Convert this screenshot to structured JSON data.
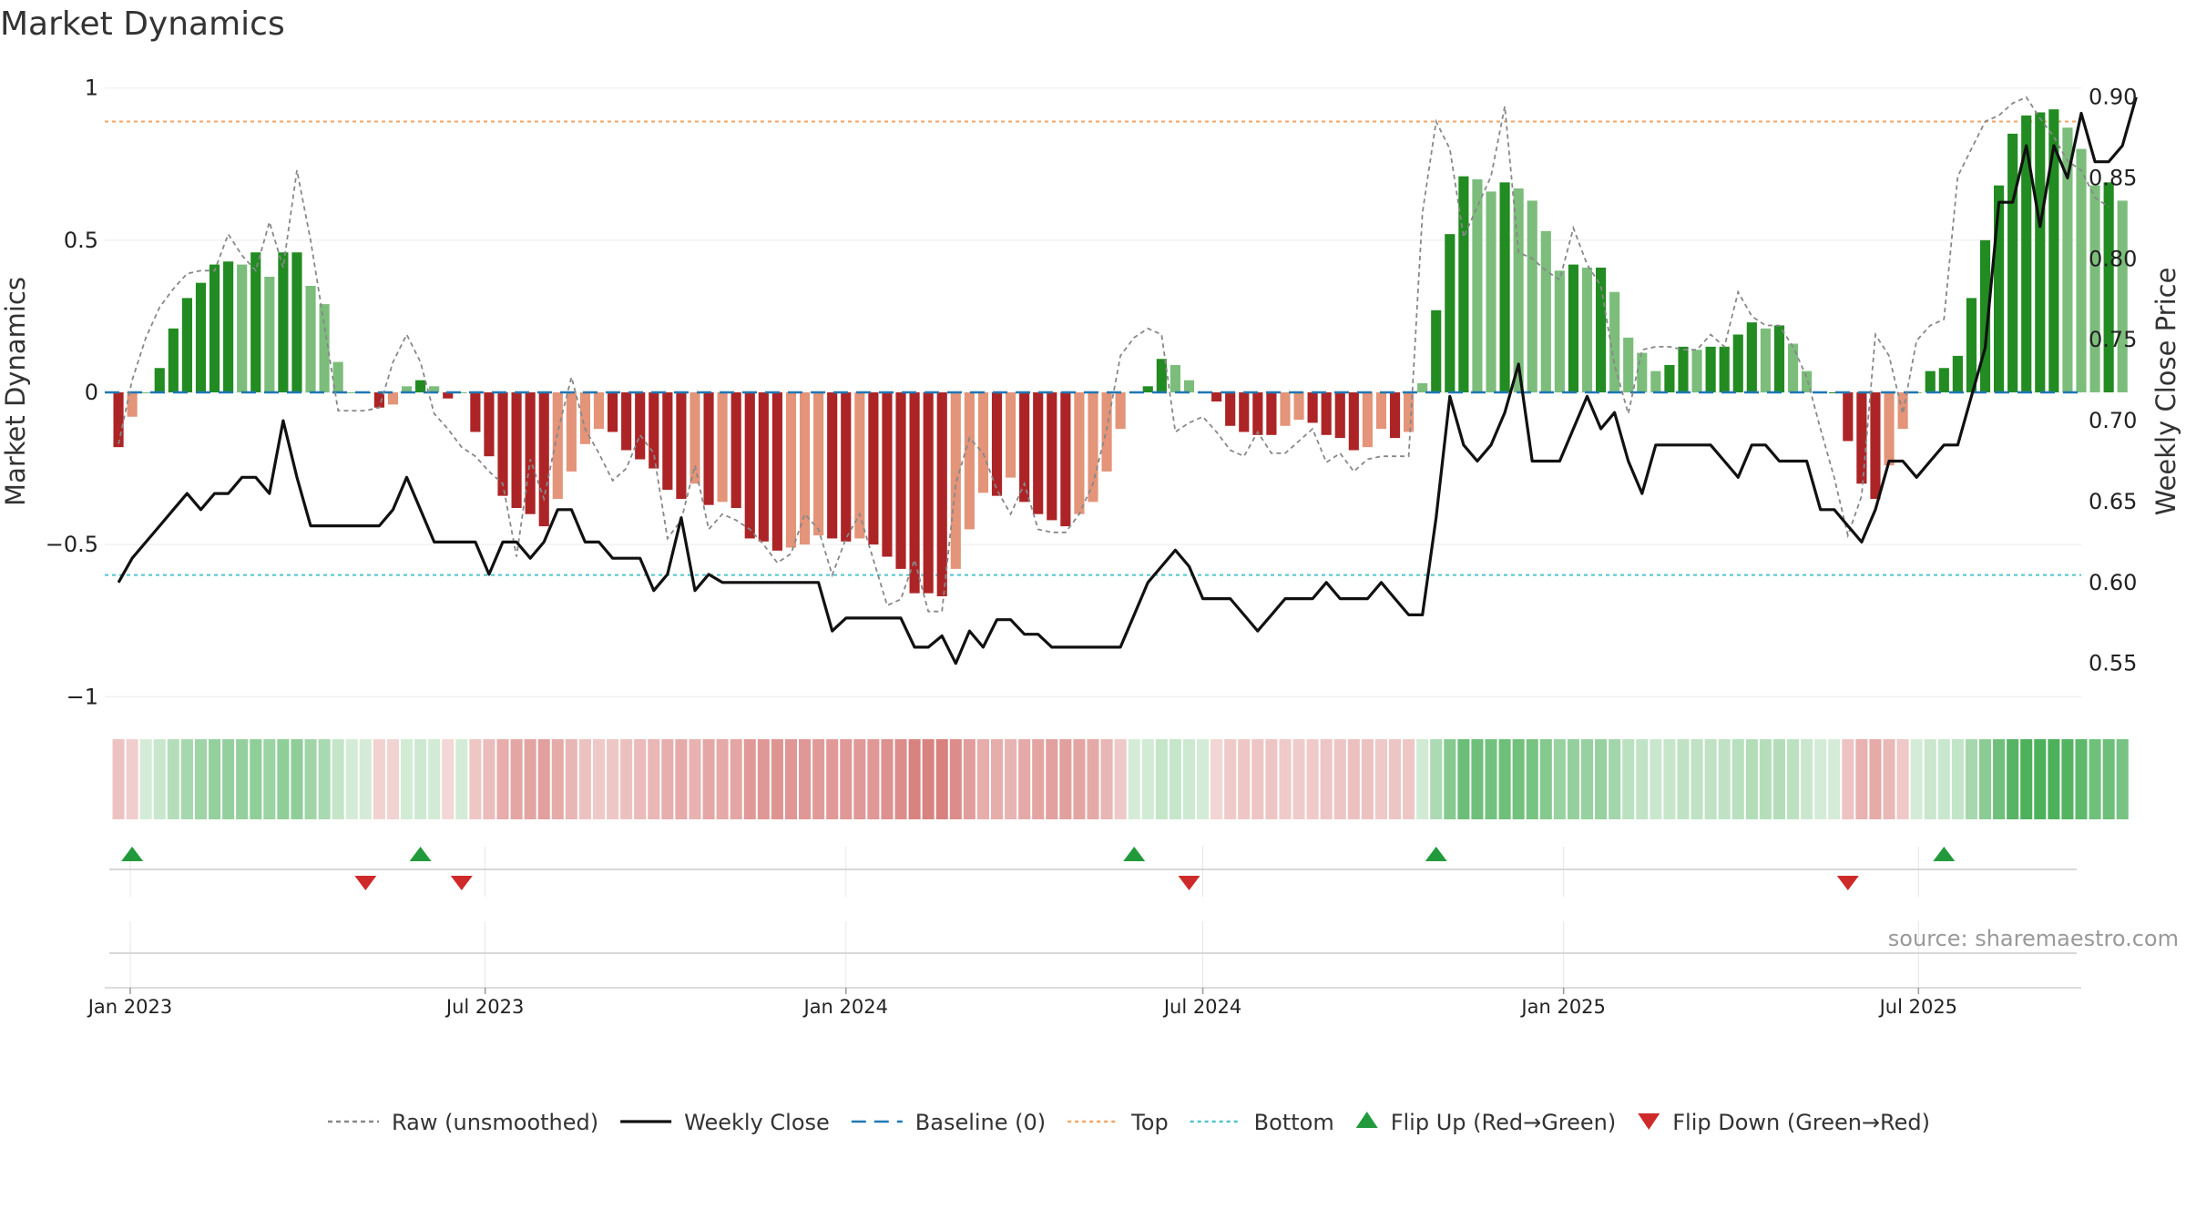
{
  "chart_data": {
    "type": "bar",
    "title": "Market Dynamics",
    "ylabel": "Market Dynamics",
    "y2label": "Weekly Close Price",
    "ylim": [
      -1.05,
      1.05
    ],
    "y2lim": [
      0.52,
      0.915
    ],
    "yticks": [
      1,
      0.5,
      0,
      -0.5,
      -1
    ],
    "ytick_labels": [
      "1",
      "0.5",
      "0",
      "−0.5",
      "−1"
    ],
    "y2ticks": [
      0.9,
      0.85,
      0.8,
      0.75,
      0.7,
      0.65,
      0.6,
      0.55
    ],
    "y2tick_labels": [
      "0.90",
      "0.85",
      "0.80",
      "0.75",
      "0.70",
      "0.65",
      "0.60",
      "0.55"
    ],
    "x_start": "2022-12-19",
    "x_end": "2025-09-22",
    "week_start": "2022-12-26",
    "xticks": [
      {
        "date": "2023-01-01",
        "label": "Jan 2023"
      },
      {
        "date": "2023-07-01",
        "label": "Jul 2023"
      },
      {
        "date": "2024-01-01",
        "label": "Jan 2024"
      },
      {
        "date": "2024-07-01",
        "label": "Jul 2024"
      },
      {
        "date": "2025-01-01",
        "label": "Jan 2025"
      },
      {
        "date": "2025-07-01",
        "label": "Jul 2025"
      }
    ],
    "top_level": 0.89,
    "bottom_level": -0.6,
    "baseline": 0,
    "grid": true,
    "legend_position": "bottom",
    "colors": {
      "green_strong": "#228b22",
      "green_weak": "#7cbd7c",
      "red_strong": "#ad2426",
      "red_weak": "#e39479",
      "close": "#111111",
      "raw": "#888888",
      "baseline": "#1f77b4",
      "top": "#f2a566",
      "bottom": "#4fc3d0",
      "flip_up": "#229a3c",
      "flip_down": "#cf2a2a"
    },
    "dynamics": [
      -0.18,
      -0.08,
      0.0,
      0.08,
      0.21,
      0.31,
      0.36,
      0.42,
      0.43,
      0.42,
      0.46,
      0.38,
      0.46,
      0.46,
      0.35,
      0.29,
      0.1,
      0.0,
      0.0,
      -0.05,
      -0.04,
      0.02,
      0.04,
      0.02,
      -0.02,
      0.0,
      -0.13,
      -0.21,
      -0.34,
      -0.38,
      -0.4,
      -0.44,
      -0.35,
      -0.26,
      -0.17,
      -0.12,
      -0.13,
      -0.19,
      -0.22,
      -0.25,
      -0.32,
      -0.35,
      -0.3,
      -0.37,
      -0.36,
      -0.38,
      -0.48,
      -0.49,
      -0.52,
      -0.51,
      -0.5,
      -0.47,
      -0.48,
      -0.49,
      -0.48,
      -0.5,
      -0.54,
      -0.58,
      -0.66,
      -0.66,
      -0.67,
      -0.58,
      -0.45,
      -0.33,
      -0.34,
      -0.28,
      -0.36,
      -0.4,
      -0.42,
      -0.44,
      -0.4,
      -0.36,
      -0.26,
      -0.12,
      0.0,
      0.02,
      0.11,
      0.09,
      0.04,
      0.0,
      -0.03,
      -0.11,
      -0.13,
      -0.14,
      -0.14,
      -0.11,
      -0.09,
      -0.1,
      -0.14,
      -0.15,
      -0.19,
      -0.18,
      -0.12,
      -0.15,
      -0.13,
      0.03,
      0.27,
      0.52,
      0.71,
      0.7,
      0.66,
      0.69,
      0.67,
      0.63,
      0.53,
      0.4,
      0.42,
      0.41,
      0.41,
      0.33,
      0.18,
      0.13,
      0.07,
      0.09,
      0.15,
      0.14,
      0.15,
      0.15,
      0.19,
      0.23,
      0.21,
      0.22,
      0.16,
      0.07,
      0.0,
      0.0,
      -0.16,
      -0.3,
      -0.35,
      -0.24,
      -0.12,
      0.0,
      0.07,
      0.08,
      0.12,
      0.31,
      0.5,
      0.68,
      0.85,
      0.91,
      0.92,
      0.93,
      0.87,
      0.8,
      0.68,
      0.69,
      0.63
    ],
    "raw": [
      -0.17,
      0.04,
      0.18,
      0.28,
      0.34,
      0.39,
      0.4,
      0.4,
      0.52,
      0.45,
      0.4,
      0.56,
      0.41,
      0.73,
      0.5,
      0.22,
      -0.06,
      -0.06,
      -0.06,
      -0.05,
      0.1,
      0.19,
      0.1,
      -0.07,
      -0.12,
      -0.18,
      -0.21,
      -0.26,
      -0.3,
      -0.54,
      -0.22,
      -0.35,
      -0.13,
      0.05,
      -0.12,
      -0.2,
      -0.29,
      -0.25,
      -0.14,
      -0.2,
      -0.48,
      -0.42,
      -0.24,
      -0.45,
      -0.4,
      -0.42,
      -0.45,
      -0.5,
      -0.56,
      -0.53,
      -0.4,
      -0.45,
      -0.6,
      -0.48,
      -0.4,
      -0.55,
      -0.7,
      -0.68,
      -0.55,
      -0.72,
      -0.72,
      -0.3,
      -0.15,
      -0.2,
      -0.32,
      -0.4,
      -0.3,
      -0.45,
      -0.46,
      -0.46,
      -0.4,
      -0.3,
      -0.12,
      0.12,
      0.18,
      0.21,
      0.19,
      -0.13,
      -0.1,
      -0.08,
      -0.13,
      -0.19,
      -0.21,
      -0.13,
      -0.2,
      -0.2,
      -0.16,
      -0.12,
      -0.23,
      -0.2,
      -0.26,
      -0.22,
      -0.21,
      -0.21,
      -0.21,
      0.59,
      0.89,
      0.8,
      0.51,
      0.61,
      0.71,
      0.94,
      0.46,
      0.44,
      0.4,
      0.37,
      0.54,
      0.42,
      0.35,
      0.09,
      -0.07,
      0.14,
      0.15,
      0.15,
      0.14,
      0.14,
      0.19,
      0.15,
      0.33,
      0.25,
      0.22,
      0.22,
      0.15,
      0.05,
      -0.12,
      -0.28,
      -0.47,
      -0.34,
      0.19,
      0.12,
      -0.07,
      0.17,
      0.22,
      0.24,
      0.71,
      0.8,
      0.89,
      0.91,
      0.95,
      0.97,
      0.9,
      0.84,
      0.76,
      0.73,
      0.64,
      0.61
    ],
    "close": [
      0.6,
      0.615,
      0.625,
      0.635,
      0.645,
      0.655,
      0.645,
      0.655,
      0.655,
      0.665,
      0.665,
      0.655,
      0.7,
      0.665,
      0.635,
      0.635,
      0.635,
      0.635,
      0.635,
      0.635,
      0.645,
      0.665,
      0.645,
      0.625,
      0.625,
      0.625,
      0.625,
      0.605,
      0.625,
      0.625,
      0.615,
      0.625,
      0.645,
      0.645,
      0.625,
      0.625,
      0.615,
      0.615,
      0.615,
      0.595,
      0.605,
      0.64,
      0.595,
      0.605,
      0.6,
      0.6,
      0.6,
      0.6,
      0.6,
      0.6,
      0.6,
      0.6,
      0.57,
      0.578,
      0.578,
      0.578,
      0.578,
      0.578,
      0.56,
      0.56,
      0.567,
      0.55,
      0.57,
      0.56,
      0.577,
      0.577,
      0.568,
      0.568,
      0.56,
      0.56,
      0.56,
      0.56,
      0.56,
      0.56,
      0.58,
      0.6,
      0.61,
      0.62,
      0.61,
      0.59,
      0.59,
      0.59,
      0.58,
      0.57,
      0.58,
      0.59,
      0.59,
      0.59,
      0.6,
      0.59,
      0.59,
      0.59,
      0.6,
      0.59,
      0.58,
      0.58,
      0.64,
      0.715,
      0.685,
      0.675,
      0.685,
      0.705,
      0.735,
      0.675,
      0.675,
      0.675,
      0.695,
      0.715,
      0.695,
      0.705,
      0.675,
      0.655,
      0.685,
      0.685,
      0.685,
      0.685,
      0.685,
      0.675,
      0.665,
      0.685,
      0.685,
      0.675,
      0.675,
      0.675,
      0.645,
      0.645,
      0.635,
      0.625,
      0.645,
      0.675,
      0.675,
      0.665,
      0.675,
      0.685,
      0.685,
      0.715,
      0.745,
      0.835,
      0.835,
      0.87,
      0.82,
      0.87,
      0.85,
      0.89,
      0.86,
      0.86,
      0.87,
      0.9
    ],
    "flip_up_weeks": [
      1,
      22,
      74,
      96,
      133
    ],
    "flip_down_weeks": [
      18,
      25,
      78,
      126
    ],
    "source": "source: sharemaestro.com",
    "legend": [
      {
        "key": "raw",
        "label": "Raw (unsmoothed)"
      },
      {
        "key": "close",
        "label": "Weekly Close"
      },
      {
        "key": "baseline",
        "label": "Baseline (0)"
      },
      {
        "key": "top",
        "label": "Top"
      },
      {
        "key": "bottom",
        "label": "Bottom"
      },
      {
        "key": "flip_up",
        "label": "Flip Up (Red→Green)"
      },
      {
        "key": "flip_down",
        "label": "Flip Down (Green→Red)"
      }
    ]
  }
}
